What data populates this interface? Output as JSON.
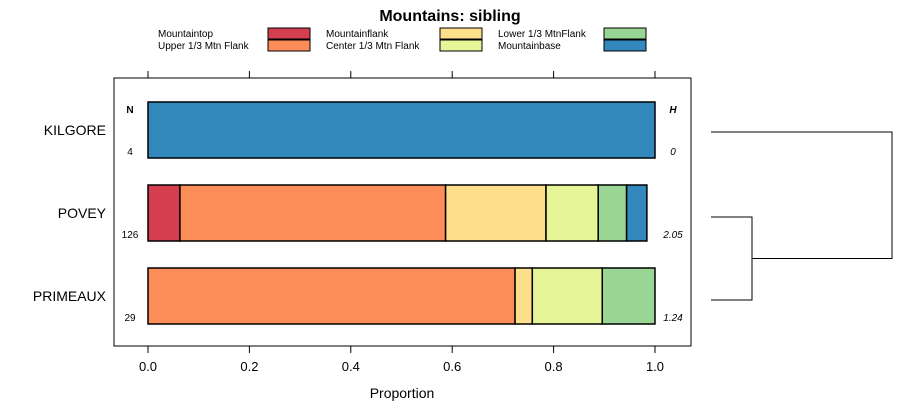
{
  "chart_data": {
    "type": "bar",
    "orientation": "horizontal-stacked",
    "title": "Mountains: sibling",
    "xlabel": "Proportion",
    "xlim": [
      0,
      1
    ],
    "xticks": [
      "0.0",
      "0.2",
      "0.4",
      "0.6",
      "0.8",
      "1.0"
    ],
    "n_header": "N",
    "h_header": "H",
    "categories": [
      "KILGORE",
      "POVEY",
      "PRIMEAUX"
    ],
    "n_values": [
      "4",
      "126",
      "29"
    ],
    "h_values": [
      "0",
      "2.05",
      "1.24"
    ],
    "series": [
      {
        "name": "Mountaintop",
        "color": "#d53e4f",
        "values": [
          0,
          0.063,
          0
        ]
      },
      {
        "name": "Upper 1/3 Mtn Flank",
        "color": "#fc8d59",
        "values": [
          0,
          0.524,
          0.724
        ]
      },
      {
        "name": "Mountainflank",
        "color": "#fee08b",
        "values": [
          0,
          0.198,
          0.034
        ]
      },
      {
        "name": "Center 1/3 Mtn Flank",
        "color": "#e6f598",
        "values": [
          0,
          0.103,
          0.138
        ]
      },
      {
        "name": "Lower 1/3 MtnFlank",
        "color": "#99d594",
        "values": [
          0,
          0.056,
          0.104
        ]
      },
      {
        "name": "Mountainbase",
        "color": "#3288bd",
        "values": [
          1.0,
          0.04,
          0
        ]
      }
    ],
    "legend": "top",
    "dendrogram": {
      "merges": [
        [
          "POVEY",
          "PRIMEAUX"
        ],
        [
          "KILGORE",
          "POVEY+PRIMEAUX"
        ]
      ]
    }
  }
}
